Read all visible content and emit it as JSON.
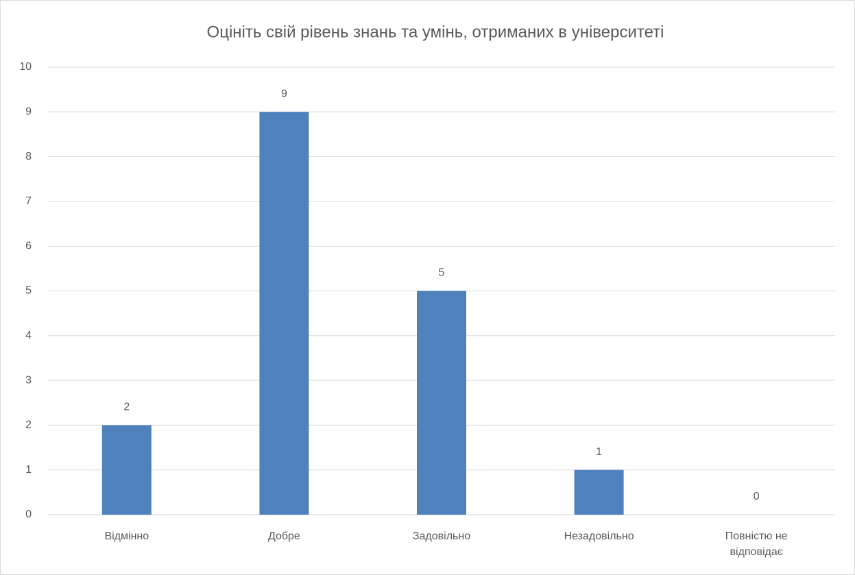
{
  "chart_data": {
    "type": "bar",
    "title": "Оцініть свій рівень знань та умінь, отриманих в університеті",
    "categories": [
      "Відмінно",
      "Добре",
      "Задовільно",
      "Незадовільно",
      "Повністю не відповідає"
    ],
    "values": [
      2,
      9,
      5,
      1,
      0
    ],
    "color": "#4f81bd",
    "ylim": [
      0,
      10
    ],
    "yticks": [
      0,
      1,
      2,
      3,
      4,
      5,
      6,
      7,
      8,
      9,
      10
    ],
    "grid": true
  }
}
